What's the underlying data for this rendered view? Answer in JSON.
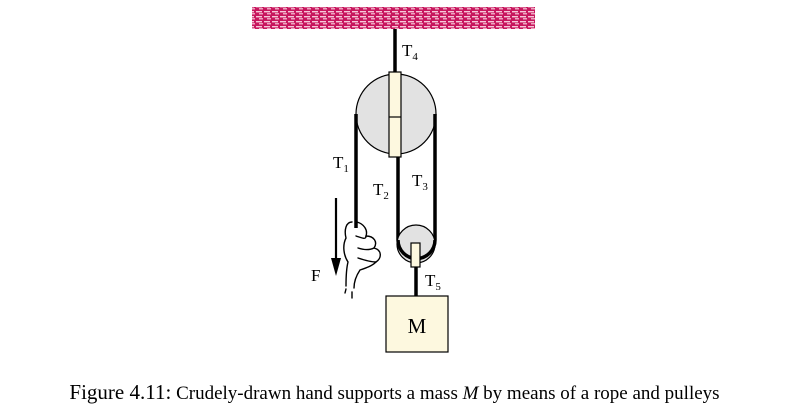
{
  "diagram": {
    "labels": {
      "t1": {
        "base": "T",
        "sub": "1"
      },
      "t2": {
        "base": "T",
        "sub": "2"
      },
      "t3": {
        "base": "T",
        "sub": "3"
      },
      "t4": {
        "base": "T",
        "sub": "4"
      },
      "t5": {
        "base": "T",
        "sub": "5"
      },
      "force": "F",
      "mass": "M"
    },
    "colors": {
      "ceiling": "#c8175e",
      "ceiling_hatch": "#f6c8d8",
      "pulley": "#e2e2e2",
      "bracket": "#fdf8df",
      "outline": "#000000"
    }
  },
  "caption": {
    "prefix": "Figure 4.11:",
    "text_before": "Crudely-drawn hand supports a mass",
    "variable": "M",
    "text_after": "by means of a rope and pulleys"
  }
}
